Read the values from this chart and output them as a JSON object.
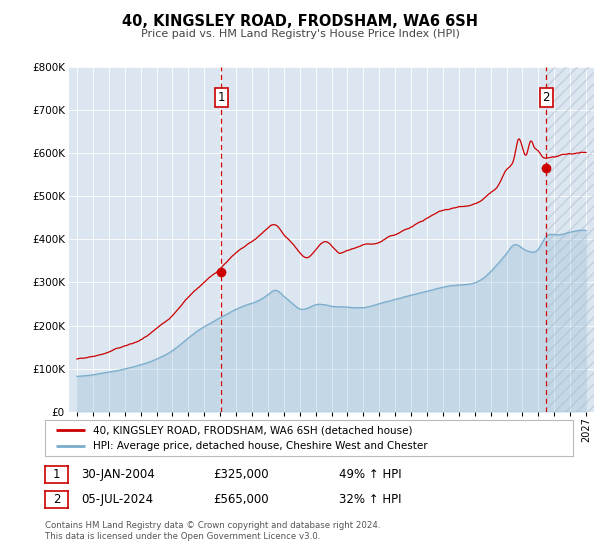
{
  "title": "40, KINGSLEY ROAD, FRODSHAM, WA6 6SH",
  "subtitle": "Price paid vs. HM Land Registry's House Price Index (HPI)",
  "legend_line1": "40, KINGSLEY ROAD, FRODSHAM, WA6 6SH (detached house)",
  "legend_line2": "HPI: Average price, detached house, Cheshire West and Chester",
  "annotation1_date": "30-JAN-2004",
  "annotation1_price": "£325,000",
  "annotation1_hpi": "49% ↑ HPI",
  "annotation2_date": "05-JUL-2024",
  "annotation2_price": "£565,000",
  "annotation2_hpi": "32% ↑ HPI",
  "footer1": "Contains HM Land Registry data © Crown copyright and database right 2024.",
  "footer2": "This data is licensed under the Open Government Licence v3.0.",
  "ylim": [
    0,
    800000
  ],
  "yticks": [
    0,
    100000,
    200000,
    300000,
    400000,
    500000,
    600000,
    700000,
    800000
  ],
  "plot_bg": "#dce6f0",
  "line_color_red": "#cc0000",
  "line_color_blue": "#7aadcc",
  "marker1_x": 2004.08,
  "marker1_y": 325000,
  "marker2_x": 2024.5,
  "marker2_y": 565000,
  "vline1_x": 2004.08,
  "vline2_x": 2024.5,
  "xmin": 1994.5,
  "xmax": 2027.5
}
